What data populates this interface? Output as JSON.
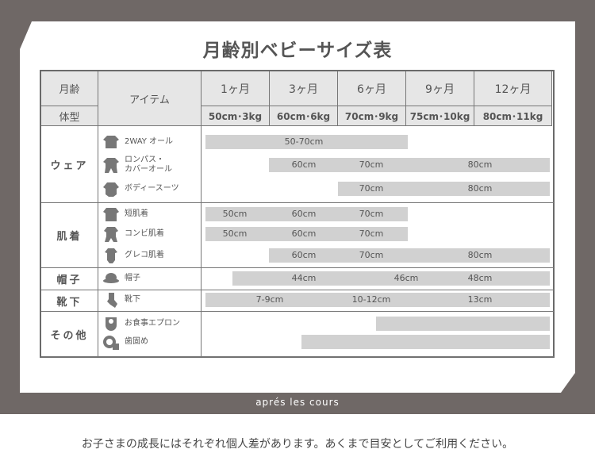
{
  "title": "月齢別ベビーサイズ表",
  "header": {
    "age_label": "月齢",
    "body_label": "体型",
    "item_label": "アイテム",
    "months": [
      "1ヶ月",
      "3ヶ月",
      "6ヶ月",
      "9ヶ月",
      "12ヶ月"
    ],
    "sizes": [
      "50cm･3kg",
      "60cm･6kg",
      "70cm･9kg",
      "75cm･10kg",
      "80cm･11kg"
    ]
  },
  "categories": [
    {
      "name": "ウェア",
      "items": [
        {
          "name": "2WAY オール",
          "icon": "two-way-all-icon",
          "labels": [
            "50-70cm"
          ]
        },
        {
          "name": "ロンパス・\nカバーオール",
          "icon": "romper-icon",
          "labels": [
            "60cm",
            "70cm",
            "80cm"
          ]
        },
        {
          "name": "ボディースーツ",
          "icon": "bodysuit-icon",
          "labels": [
            "70cm",
            "80cm"
          ]
        }
      ]
    },
    {
      "name": "肌着",
      "items": [
        {
          "name": "短肌着",
          "icon": "short-undershirt-icon",
          "labels": [
            "50cm",
            "60cm",
            "70cm"
          ]
        },
        {
          "name": "コンビ肌着",
          "icon": "combi-undershirt-icon",
          "labels": [
            "50cm",
            "60cm",
            "70cm"
          ]
        },
        {
          "name": "グレコ肌着",
          "icon": "greco-undershirt-icon",
          "labels": [
            "60cm",
            "70cm",
            "80cm"
          ]
        }
      ]
    },
    {
      "name": "帽子",
      "items": [
        {
          "name": "帽子",
          "icon": "hat-icon",
          "labels": [
            "44cm",
            "46cm",
            "48cm"
          ]
        }
      ]
    },
    {
      "name": "靴下",
      "items": [
        {
          "name": "靴下",
          "icon": "socks-icon",
          "labels": [
            "7-9cm",
            "10-12cm",
            "13cm"
          ]
        }
      ]
    },
    {
      "name": "その他",
      "items": [
        {
          "name": "お食事エプロン",
          "icon": "bib-icon",
          "labels": []
        },
        {
          "name": "歯固め",
          "icon": "teether-icon",
          "labels": []
        }
      ]
    }
  ],
  "brand": "aprés les cours",
  "note": "お子さまの成長にはそれぞれ個人差があります。あくまで目安としてご利用ください。",
  "colors": {
    "frame": "#6f6866",
    "bar": "#d1d1d1",
    "header": "#e6e6e6"
  }
}
